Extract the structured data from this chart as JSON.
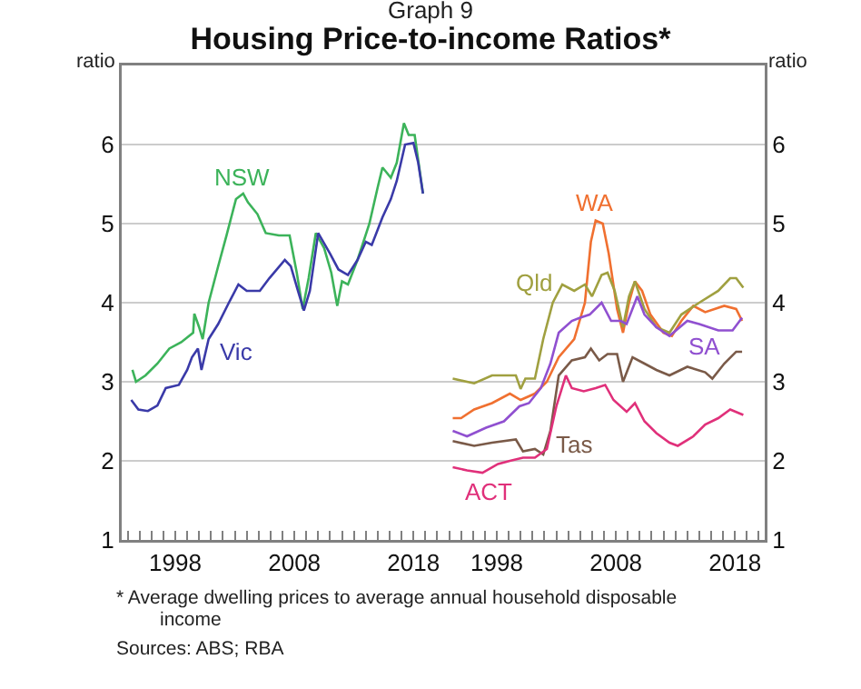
{
  "chart_data": [
    {
      "type": "line",
      "subtitle": "Graph 9",
      "title": "Housing Price-to-income Ratios*",
      "ylabel": "ratio",
      "grid": "y",
      "xlim": [
        1993.5,
        2020.5
      ],
      "ylim": [
        1,
        7
      ],
      "xticks": [
        {
          "value": 1994,
          "label": null
        },
        {
          "value": 1995,
          "label": null
        },
        {
          "value": 1996,
          "label": null
        },
        {
          "value": 1997,
          "label": null
        },
        {
          "value": 1998,
          "label": "1998"
        },
        {
          "value": 1999,
          "label": null
        },
        {
          "value": 2000,
          "label": null
        },
        {
          "value": 2001,
          "label": null
        },
        {
          "value": 2002,
          "label": null
        },
        {
          "value": 2003,
          "label": null
        },
        {
          "value": 2004,
          "label": null
        },
        {
          "value": 2005,
          "label": null
        },
        {
          "value": 2006,
          "label": null
        },
        {
          "value": 2007,
          "label": null
        },
        {
          "value": 2008,
          "label": "2008"
        },
        {
          "value": 2009,
          "label": null
        },
        {
          "value": 2010,
          "label": null
        },
        {
          "value": 2011,
          "label": null
        },
        {
          "value": 2012,
          "label": null
        },
        {
          "value": 2013,
          "label": null
        },
        {
          "value": 2014,
          "label": null
        },
        {
          "value": 2015,
          "label": null
        },
        {
          "value": 2016,
          "label": null
        },
        {
          "value": 2017,
          "label": null
        },
        {
          "value": 2018,
          "label": "2018"
        },
        {
          "value": 2019,
          "label": null
        },
        {
          "value": 2020,
          "label": null
        }
      ],
      "yticks": [
        1,
        2,
        3,
        4,
        5,
        6
      ],
      "series": [
        {
          "name": "NSW",
          "color": "#3cb35a",
          "x": [
            1994.4,
            1994.7,
            1995.5,
            1996.5,
            1997.5,
            1998.5,
            1999.5,
            1999.6,
            2000,
            2000.3,
            2000.8,
            2001.6,
            2002.3,
            2003.1,
            2003.7,
            2004.1,
            2004.9,
            2005.6,
            2006.7,
            2007.6,
            2008.2,
            2008.7,
            2009.2,
            2009.8,
            2010.5,
            2011.1,
            2011.6,
            2012,
            2012.5,
            2013.3,
            2014.3,
            2015,
            2015.4,
            2016.1,
            2016.6,
            2017.2,
            2017.6,
            2018.1,
            2018.8
          ],
          "values": [
            3.15,
            3.0,
            3.08,
            3.23,
            3.42,
            3.5,
            3.62,
            3.86,
            3.69,
            3.54,
            4.0,
            4.46,
            4.85,
            5.31,
            5.38,
            5.27,
            5.12,
            4.88,
            4.85,
            4.85,
            4.38,
            3.92,
            4.31,
            4.88,
            4.69,
            4.38,
            3.96,
            4.27,
            4.23,
            4.54,
            5.0,
            5.46,
            5.71,
            5.58,
            5.77,
            6.27,
            6.12,
            6.12,
            5.38
          ]
        },
        {
          "name": "Vic",
          "color": "#3a3aa8",
          "x": [
            1994.3,
            1994.9,
            1995.7,
            1996.5,
            1997.2,
            1998.3,
            1999,
            1999.4,
            1999.9,
            2000.2,
            2000.8,
            2001.6,
            2002.5,
            2003.3,
            2004,
            2005.1,
            2005.9,
            2007.2,
            2007.7,
            2008.3,
            2008.8,
            2009.3,
            2010,
            2011,
            2011.7,
            2012.5,
            2013.3,
            2014,
            2014.5,
            2015.4,
            2016.1,
            2016.6,
            2017.3,
            2018,
            2018.4,
            2018.8
          ],
          "values": [
            2.77,
            2.65,
            2.63,
            2.7,
            2.92,
            2.96,
            3.15,
            3.31,
            3.42,
            3.15,
            3.54,
            3.73,
            4.0,
            4.23,
            4.15,
            4.15,
            4.31,
            4.54,
            4.46,
            4.15,
            3.9,
            4.15,
            4.88,
            4.62,
            4.42,
            4.35,
            4.54,
            4.77,
            4.73,
            5.08,
            5.31,
            5.54,
            6.0,
            6.02,
            5.77,
            5.38
          ]
        }
      ]
    },
    {
      "type": "line",
      "ylabel": "ratio",
      "grid": "y",
      "xlim": [
        1993.5,
        2020.5
      ],
      "ylim": [
        1,
        7
      ],
      "annotations": [
        "* Average dwelling prices to average annual household disposable income",
        "Sources: ABS; RBA"
      ],
      "xticks": [
        {
          "value": 1994,
          "label": null
        },
        {
          "value": 1995,
          "label": null
        },
        {
          "value": 1996,
          "label": null
        },
        {
          "value": 1997,
          "label": null
        },
        {
          "value": 1998,
          "label": "1998"
        },
        {
          "value": 1999,
          "label": null
        },
        {
          "value": 2000,
          "label": null
        },
        {
          "value": 2001,
          "label": null
        },
        {
          "value": 2002,
          "label": null
        },
        {
          "value": 2003,
          "label": null
        },
        {
          "value": 2004,
          "label": null
        },
        {
          "value": 2005,
          "label": null
        },
        {
          "value": 2006,
          "label": null
        },
        {
          "value": 2007,
          "label": null
        },
        {
          "value": 2008,
          "label": "2008"
        },
        {
          "value": 2009,
          "label": null
        },
        {
          "value": 2010,
          "label": null
        },
        {
          "value": 2011,
          "label": null
        },
        {
          "value": 2012,
          "label": null
        },
        {
          "value": 2013,
          "label": null
        },
        {
          "value": 2014,
          "label": null
        },
        {
          "value": 2015,
          "label": null
        },
        {
          "value": 2016,
          "label": null
        },
        {
          "value": 2017,
          "label": null
        },
        {
          "value": 2018,
          "label": "2018"
        },
        {
          "value": 2019,
          "label": null
        },
        {
          "value": 2020,
          "label": null
        }
      ],
      "yticks": [
        1,
        2,
        3,
        4,
        5,
        6
      ],
      "series": [
        {
          "name": "WA",
          "color": "#f07030",
          "x": [
            1994.3,
            1995,
            1996.1,
            1997.6,
            1999.1,
            2000,
            2001.2,
            2002.2,
            2003.2,
            2004.5,
            2005.4,
            2005.9,
            2006.3,
            2006.9,
            2007.4,
            2008.1,
            2008.6,
            2009.1,
            2009.6,
            2010.2,
            2010.9,
            2012,
            2012.7,
            2013.5,
            2014.5,
            2015.5,
            2017.1,
            2018.1,
            2018.6
          ],
          "values": [
            2.54,
            2.54,
            2.65,
            2.73,
            2.85,
            2.77,
            2.85,
            3.0,
            3.31,
            3.54,
            4.0,
            4.77,
            5.04,
            5.0,
            4.62,
            3.92,
            3.62,
            4.0,
            4.27,
            4.15,
            3.85,
            3.62,
            3.58,
            3.77,
            3.96,
            3.88,
            3.96,
            3.92,
            3.77
          ]
        },
        {
          "name": "Qld",
          "color": "#a0a040",
          "x": [
            1994.3,
            1996.1,
            1997.6,
            1999.6,
            2000,
            2000.4,
            2001.2,
            2001.9,
            2002.7,
            2003.5,
            2004.5,
            2005.4,
            2006,
            2006.8,
            2007.3,
            2007.9,
            2008.6,
            2009.1,
            2009.6,
            2010.4,
            2011.4,
            2012.5,
            2013.5,
            2015,
            2016.6,
            2017.6,
            2018.1,
            2018.7
          ],
          "values": [
            3.04,
            2.98,
            3.08,
            3.08,
            2.91,
            3.04,
            3.04,
            3.54,
            4.0,
            4.23,
            4.15,
            4.23,
            4.08,
            4.35,
            4.38,
            4.15,
            3.69,
            4.08,
            4.27,
            3.92,
            3.69,
            3.62,
            3.85,
            4.0,
            4.15,
            4.31,
            4.31,
            4.19
          ]
        },
        {
          "name": "SA",
          "color": "#9050d0",
          "x": [
            1994.3,
            1995.5,
            1997.1,
            1998.6,
            1999.9,
            2000.7,
            2001.7,
            2002.5,
            2003.2,
            2004.3,
            2005,
            2005.8,
            2006.8,
            2007.6,
            2008.4,
            2008.9,
            2009.8,
            2010.4,
            2011.4,
            2012.5,
            2014,
            2015,
            2016.6,
            2017.8,
            2018.6
          ],
          "values": [
            2.38,
            2.31,
            2.42,
            2.5,
            2.69,
            2.73,
            2.92,
            3.23,
            3.62,
            3.77,
            3.81,
            3.85,
            4.0,
            3.77,
            3.77,
            3.73,
            4.08,
            3.85,
            3.69,
            3.58,
            3.77,
            3.73,
            3.65,
            3.65,
            3.81
          ]
        },
        {
          "name": "Tas",
          "color": "#7a5a48",
          "x": [
            1994.3,
            1996.1,
            1997.6,
            1999.6,
            2000.2,
            2001.2,
            2001.9,
            2002.5,
            2003.2,
            2004.3,
            2005.4,
            2005.9,
            2006.6,
            2007.3,
            2008.1,
            2008.6,
            2009.4,
            2010.4,
            2011.4,
            2012.5,
            2014,
            2015.5,
            2016.1,
            2017.1,
            2018.1,
            2018.6
          ],
          "values": [
            2.25,
            2.19,
            2.23,
            2.27,
            2.12,
            2.15,
            2.08,
            2.38,
            3.08,
            3.27,
            3.31,
            3.42,
            3.27,
            3.35,
            3.35,
            3.0,
            3.31,
            3.23,
            3.15,
            3.08,
            3.19,
            3.12,
            3.04,
            3.23,
            3.38,
            3.38
          ]
        },
        {
          "name": "ACT",
          "color": "#e0307a",
          "x": [
            1994.3,
            1995.5,
            1996.8,
            1998.1,
            1999.1,
            2000.2,
            2001.2,
            2002.2,
            2003,
            2003.8,
            2004.3,
            2005.3,
            2006.3,
            2007.1,
            2007.8,
            2008.9,
            2009.6,
            2010.4,
            2011.4,
            2012.5,
            2013.2,
            2014.5,
            2015.5,
            2016.6,
            2017.6,
            2018.7
          ],
          "values": [
            1.92,
            1.88,
            1.85,
            1.96,
            2.0,
            2.04,
            2.04,
            2.15,
            2.69,
            3.08,
            2.92,
            2.88,
            2.92,
            2.96,
            2.77,
            2.62,
            2.73,
            2.5,
            2.35,
            2.23,
            2.19,
            2.31,
            2.46,
            2.54,
            2.65,
            2.58
          ]
        }
      ]
    }
  ]
}
